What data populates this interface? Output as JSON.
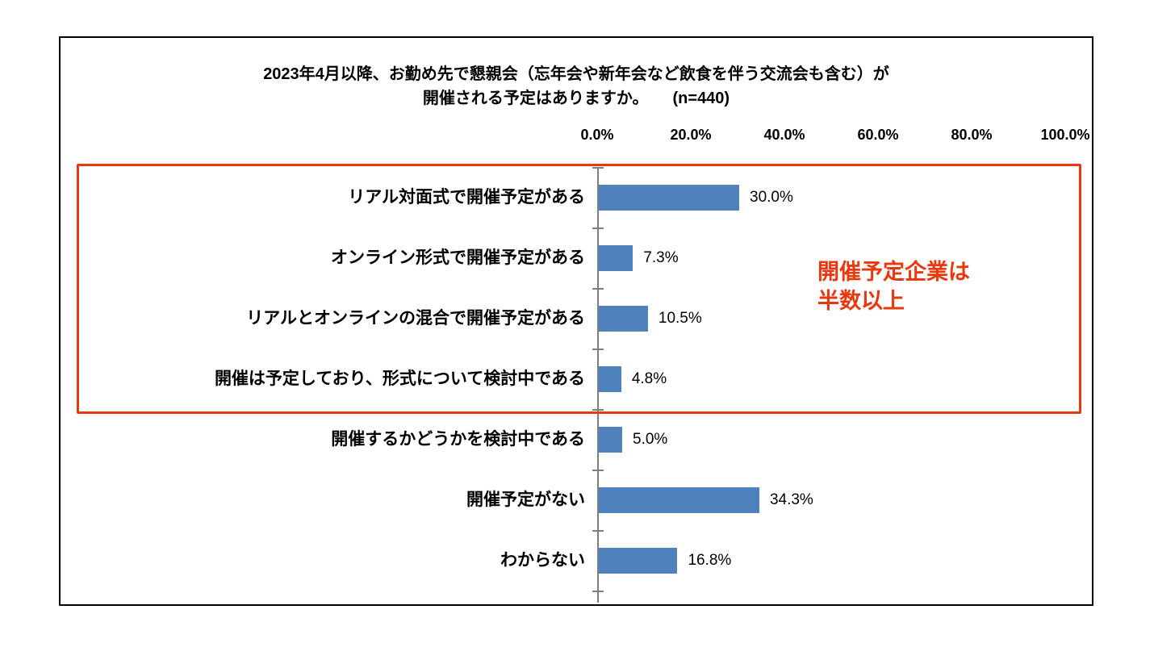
{
  "chart": {
    "title_line1": "2023年4月以降、お勤め先で懇親会（忘年会や新年会など飲食を伴う交流会も含む）が",
    "title_line2": "開催される予定はありますか。　　(n=440)"
  },
  "annotation": {
    "line1": "開催予定企業は",
    "line2": "半数以上"
  },
  "chart_data": {
    "type": "bar",
    "orientation": "horizontal",
    "title": "2023年4月以降、お勤め先で懇親会（忘年会や新年会など飲食を伴う交流会も含む）が開催される予定はありますか。 (n=440)",
    "sample_size": 440,
    "categories": [
      "リアル対面式で開催予定がある",
      "オンライン形式で開催予定がある",
      "リアルとオンラインの混合で開催予定がある",
      "開催は予定しており、形式について検討中である",
      "開催するかどうかを検討中である",
      "開催予定がない",
      "わからない"
    ],
    "values": [
      30.0,
      7.3,
      10.5,
      4.8,
      5.0,
      34.3,
      16.8
    ],
    "value_labels": [
      "30.0%",
      "7.3%",
      "10.5%",
      "4.8%",
      "5.0%",
      "34.3%",
      "16.8%"
    ],
    "x_ticks": [
      "0.0%",
      "20.0%",
      "40.0%",
      "60.0%",
      "80.0%",
      "100.0%"
    ],
    "xlim": [
      0,
      100
    ],
    "x_axis_position": "top",
    "grid": "off",
    "legend": "none",
    "bar_color": "#4f81bd",
    "axis_color": "#7f7f7f",
    "highlight": {
      "rows": [
        0,
        1,
        2,
        3
      ],
      "color": "#e8380d",
      "label": "開催予定企業は 半数以上"
    }
  }
}
